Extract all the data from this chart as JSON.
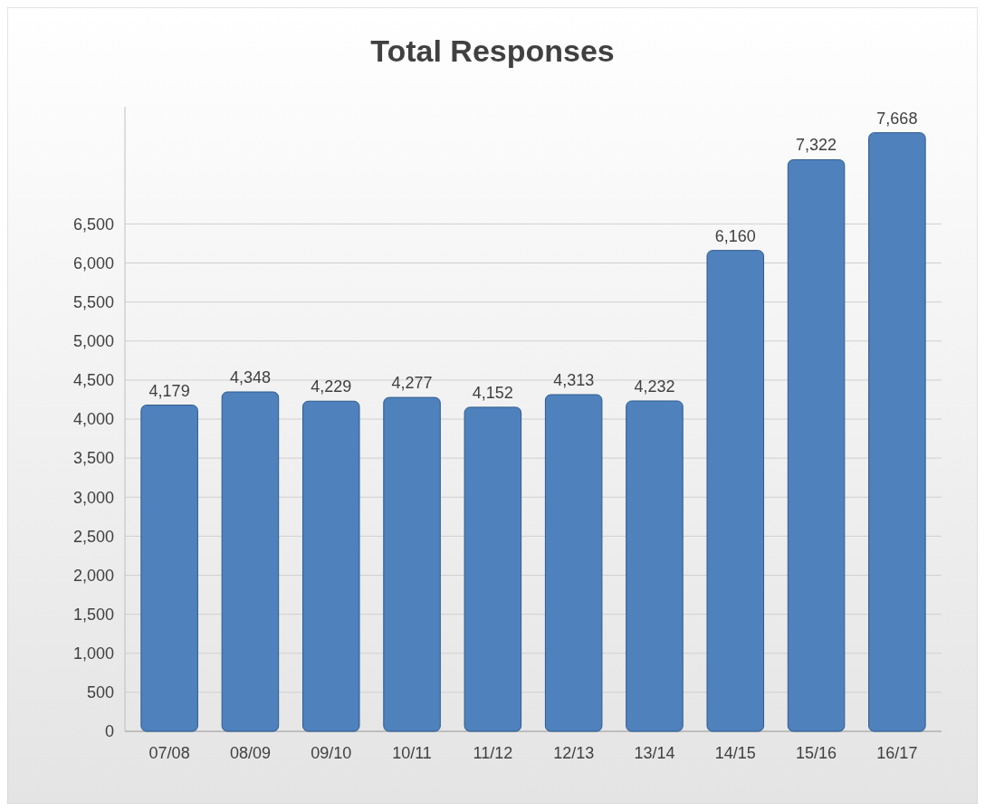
{
  "chart_data": {
    "type": "bar",
    "title": "Total Responses",
    "categories": [
      "07/08",
      "08/09",
      "09/10",
      "10/11",
      "11/12",
      "12/13",
      "13/14",
      "14/15",
      "15/16",
      "16/17"
    ],
    "values": [
      4179,
      4348,
      4229,
      4277,
      4152,
      4313,
      4232,
      6160,
      7322,
      7668
    ],
    "value_labels": [
      "4,179",
      "4,348",
      "4,229",
      "4,277",
      "4,152",
      "4,313",
      "4,232",
      "6,160",
      "7,322",
      "7,668"
    ],
    "color": "#4f81bd",
    "ylim": [
      0,
      8000
    ],
    "yticks": [
      0,
      500,
      {
        "value": 1000,
        "label": "1,000"
      },
      {
        "value": 1500,
        "label": "1,500"
      },
      {
        "value": 2000,
        "label": "2,000"
      },
      {
        "value": 2500,
        "label": "2,500"
      },
      {
        "value": 3000,
        "label": "3,000"
      },
      {
        "value": 3500,
        "label": "3,500"
      },
      {
        "value": 4000,
        "label": "4,000"
      },
      {
        "value": 4500,
        "label": "4,500"
      },
      {
        "value": 5000,
        "label": "5,000"
      },
      {
        "value": 5500,
        "label": "5,500"
      },
      {
        "value": 6000,
        "label": "6,000"
      },
      {
        "value": 6500,
        "label": "6,500"
      }
    ],
    "grid": "y"
  }
}
